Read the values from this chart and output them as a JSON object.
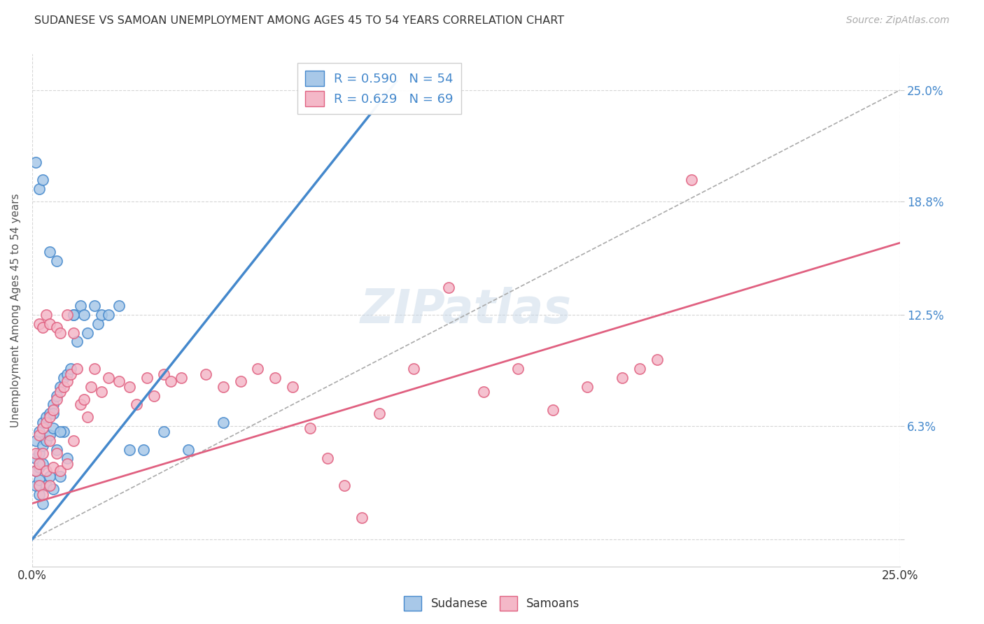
{
  "title": "SUDANESE VS SAMOAN UNEMPLOYMENT AMONG AGES 45 TO 54 YEARS CORRELATION CHART",
  "source": "Source: ZipAtlas.com",
  "ylabel": "Unemployment Among Ages 45 to 54 years",
  "xlim": [
    0.0,
    0.25
  ],
  "ylim": [
    -0.015,
    0.27
  ],
  "ytick_values": [
    0.0,
    0.063,
    0.125,
    0.188,
    0.25
  ],
  "ytick_labels": [
    "",
    "6.3%",
    "12.5%",
    "18.8%",
    "25.0%"
  ],
  "sudanese_color": "#a8c8e8",
  "samoan_color": "#f4b8c8",
  "sudanese_line_color": "#4488cc",
  "samoan_line_color": "#e06080",
  "R_sudanese": 0.59,
  "N_sudanese": 54,
  "R_samoan": 0.629,
  "N_samoan": 69,
  "background_color": "#ffffff",
  "grid_color": "#cccccc",
  "sud_line_x0": 0.0,
  "sud_line_y0": 0.0,
  "sud_line_x1": 0.105,
  "sud_line_y1": 0.255,
  "sam_line_x0": 0.0,
  "sam_line_y0": 0.02,
  "sam_line_x1": 0.25,
  "sam_line_y1": 0.165,
  "sudanese_pts_x": [
    0.001,
    0.001,
    0.001,
    0.001,
    0.002,
    0.002,
    0.002,
    0.002,
    0.002,
    0.003,
    0.003,
    0.003,
    0.003,
    0.004,
    0.004,
    0.004,
    0.005,
    0.005,
    0.005,
    0.006,
    0.006,
    0.006,
    0.007,
    0.007,
    0.008,
    0.008,
    0.009,
    0.009,
    0.01,
    0.01,
    0.011,
    0.012,
    0.013,
    0.014,
    0.015,
    0.016,
    0.018,
    0.019,
    0.02,
    0.022,
    0.025,
    0.028,
    0.032,
    0.038,
    0.045,
    0.055,
    0.001,
    0.002,
    0.003,
    0.005,
    0.007,
    0.012,
    0.008,
    0.006
  ],
  "sudanese_pts_y": [
    0.055,
    0.045,
    0.038,
    0.03,
    0.06,
    0.048,
    0.04,
    0.033,
    0.025,
    0.065,
    0.052,
    0.042,
    0.02,
    0.068,
    0.055,
    0.03,
    0.07,
    0.058,
    0.035,
    0.075,
    0.062,
    0.028,
    0.08,
    0.05,
    0.085,
    0.035,
    0.09,
    0.06,
    0.092,
    0.045,
    0.095,
    0.125,
    0.11,
    0.13,
    0.125,
    0.115,
    0.13,
    0.12,
    0.125,
    0.125,
    0.13,
    0.05,
    0.05,
    0.06,
    0.05,
    0.065,
    0.21,
    0.195,
    0.2,
    0.16,
    0.155,
    0.125,
    0.06,
    0.07
  ],
  "samoan_pts_x": [
    0.001,
    0.001,
    0.002,
    0.002,
    0.002,
    0.003,
    0.003,
    0.003,
    0.004,
    0.004,
    0.005,
    0.005,
    0.005,
    0.006,
    0.006,
    0.007,
    0.007,
    0.008,
    0.008,
    0.009,
    0.01,
    0.01,
    0.011,
    0.012,
    0.013,
    0.014,
    0.015,
    0.016,
    0.017,
    0.018,
    0.02,
    0.022,
    0.025,
    0.028,
    0.03,
    0.033,
    0.035,
    0.038,
    0.04,
    0.043,
    0.05,
    0.055,
    0.06,
    0.065,
    0.07,
    0.075,
    0.08,
    0.085,
    0.09,
    0.095,
    0.1,
    0.11,
    0.12,
    0.13,
    0.14,
    0.15,
    0.16,
    0.17,
    0.175,
    0.18,
    0.002,
    0.003,
    0.004,
    0.005,
    0.007,
    0.008,
    0.01,
    0.012,
    0.19
  ],
  "samoan_pts_y": [
    0.048,
    0.038,
    0.058,
    0.042,
    0.03,
    0.062,
    0.048,
    0.025,
    0.065,
    0.038,
    0.068,
    0.055,
    0.03,
    0.072,
    0.04,
    0.078,
    0.048,
    0.082,
    0.038,
    0.085,
    0.088,
    0.042,
    0.092,
    0.055,
    0.095,
    0.075,
    0.078,
    0.068,
    0.085,
    0.095,
    0.082,
    0.09,
    0.088,
    0.085,
    0.075,
    0.09,
    0.08,
    0.092,
    0.088,
    0.09,
    0.092,
    0.085,
    0.088,
    0.095,
    0.09,
    0.085,
    0.062,
    0.045,
    0.03,
    0.012,
    0.07,
    0.095,
    0.14,
    0.082,
    0.095,
    0.072,
    0.085,
    0.09,
    0.095,
    0.1,
    0.12,
    0.118,
    0.125,
    0.12,
    0.118,
    0.115,
    0.125,
    0.115,
    0.2
  ]
}
